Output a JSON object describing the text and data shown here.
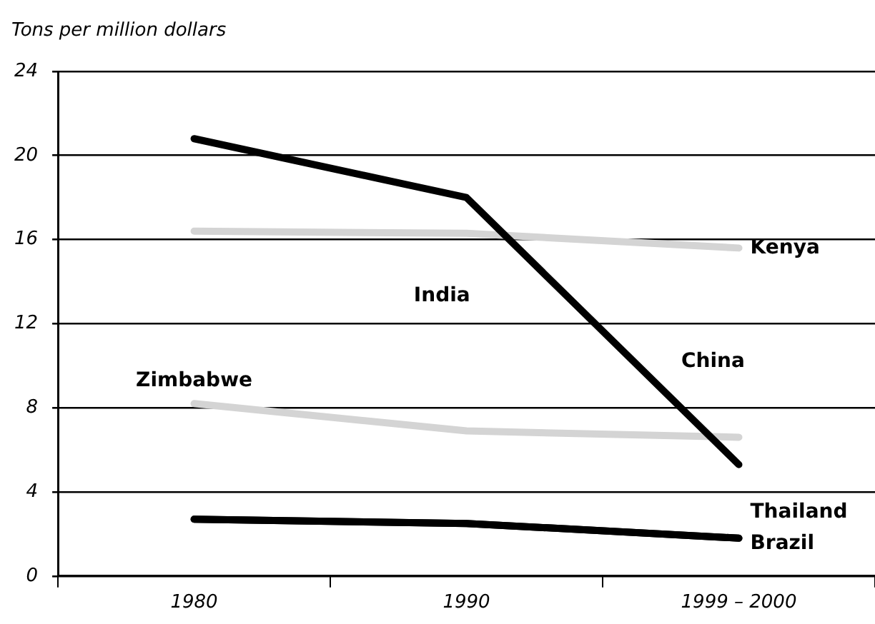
{
  "chart_data": {
    "type": "line",
    "ylabel": "Tons per million dollars",
    "categories": [
      "1980",
      "1990",
      "1999 – 2000"
    ],
    "series": [
      {
        "name": "China",
        "color": "#000000",
        "values": [
          20.8,
          18,
          5.3
        ]
      },
      {
        "name": "Kenya",
        "color": "#d4d4d4",
        "values": [
          16.4,
          16.3,
          15.6
        ]
      },
      {
        "name": "Zimbabwe",
        "color": "#d4d4d4",
        "values": [
          8.2,
          6.9,
          6.6
        ]
      },
      {
        "name": "Thailand",
        "color": "#000000",
        "values": [
          2.7,
          2.5,
          1.8
        ]
      },
      {
        "name": "Brazil",
        "color": "#000000",
        "values": [
          2.7,
          2.5,
          1.8
        ]
      }
    ],
    "annotations": [
      "India"
    ],
    "ylim": [
      0,
      24
    ],
    "yticks": [
      0,
      4,
      8,
      12,
      16,
      20,
      24
    ],
    "grid": "y",
    "legend": false,
    "marker": "none",
    "line_style": "solid"
  }
}
